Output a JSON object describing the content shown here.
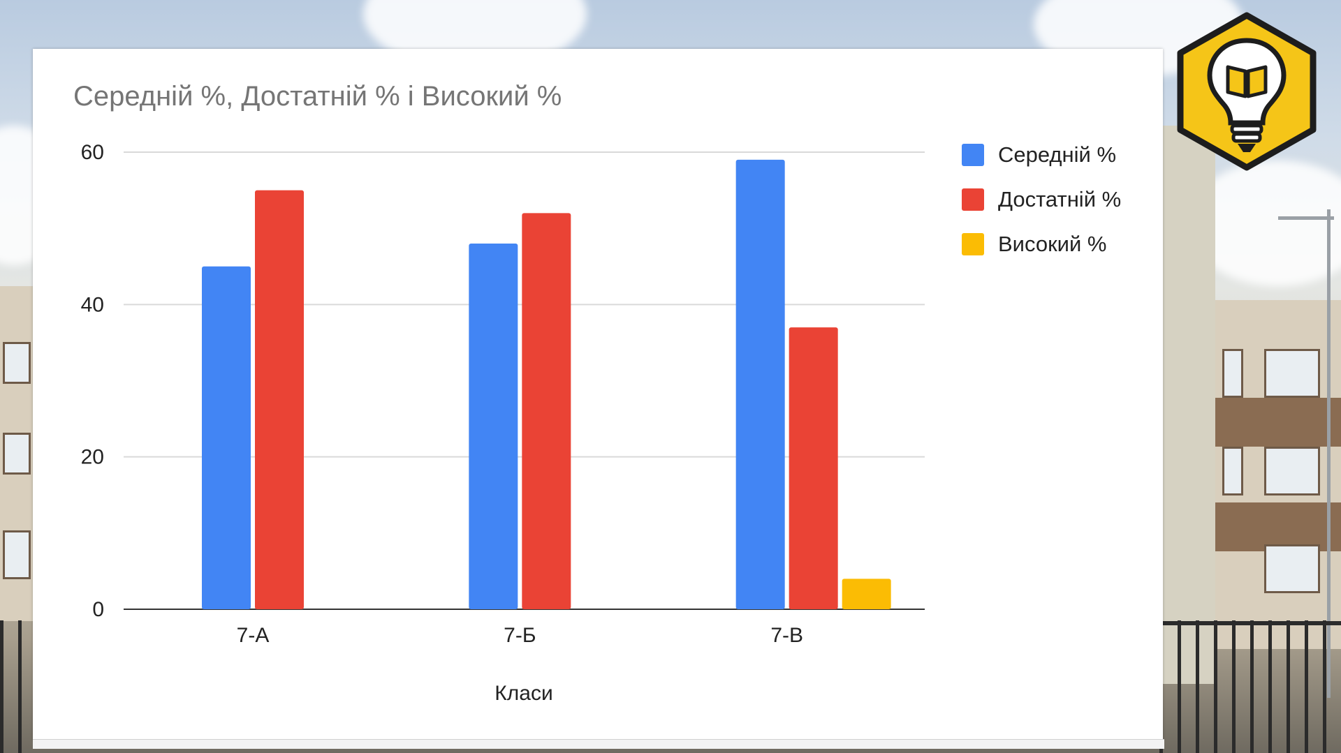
{
  "chart_data": {
    "type": "bar",
    "title": "Середній %, Достатній % і Високий %",
    "xlabel": "Класи",
    "ylabel": "",
    "categories": [
      "7-А",
      "7-Б",
      "7-В"
    ],
    "series": [
      {
        "name": "Середній %",
        "color": "#4285f4",
        "values": [
          45,
          48,
          59
        ]
      },
      {
        "name": "Достатній %",
        "color": "#ea4335",
        "values": [
          55,
          52,
          37
        ]
      },
      {
        "name": "Високий %",
        "color": "#fbbc04",
        "values": [
          0,
          0,
          4
        ]
      }
    ],
    "ylim": [
      0,
      60
    ],
    "yticks": [
      0,
      20,
      40,
      60
    ],
    "grid": true,
    "legend_position": "right"
  },
  "logo": {
    "icon": "lightbulb-book-icon",
    "color": "#f5c518"
  }
}
